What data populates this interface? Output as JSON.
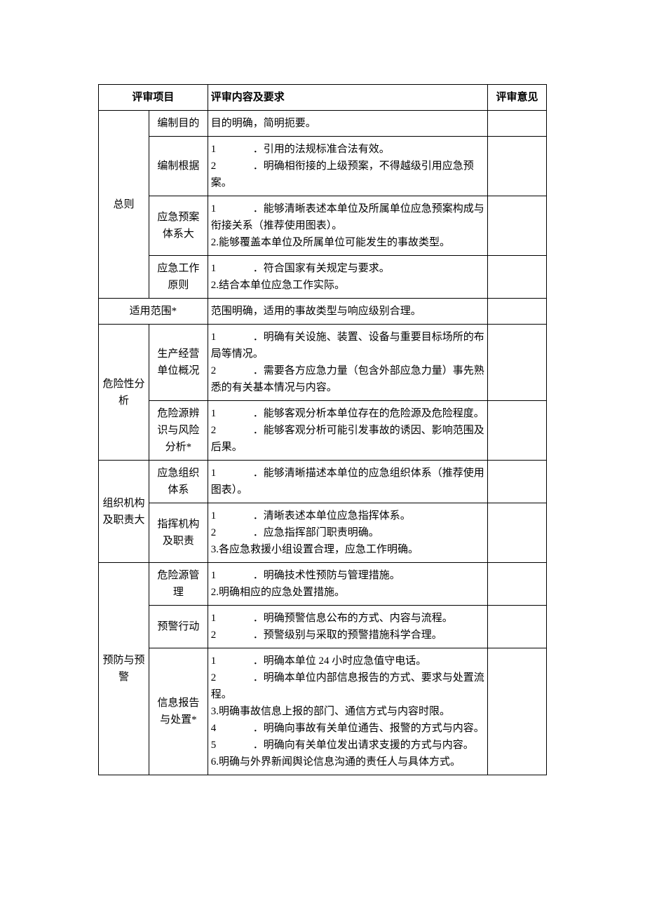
{
  "headers": {
    "col1": "评审项目",
    "col2": "评审内容及要求",
    "col3": "评审意见"
  },
  "sections": [
    {
      "category": "总则",
      "items": [
        {
          "sub": "编制目的",
          "req_lines": [
            "目的明确，简明扼要。"
          ],
          "numbered": false
        },
        {
          "sub": "编制根据",
          "req_lines": [
            "．引用的法规标准合法有效。",
            "．明确相衔接的上级预案，不得越级引用应急预案。"
          ],
          "numbered": true,
          "gap": true
        },
        {
          "sub": "应急预案体系大",
          "req_lines": [
            "．能够清晰表述本单位及所属单位应急预案构成与衔接关系（推荐使用图表）。",
            "2.能够覆盖本单位及所属单位可能发生的事故类型。"
          ],
          "numbered": "mixed"
        },
        {
          "sub": "应急工作原则",
          "req_lines": [
            "．符合国家有关规定与要求。",
            "2.结合本单位应急工作实际。"
          ],
          "numbered": "mixed1"
        }
      ]
    },
    {
      "category_full": "适用范围*",
      "req_lines": [
        "范围明确，适用的事故类型与响应级别合理。"
      ]
    },
    {
      "category": "危险性分析",
      "items": [
        {
          "sub": "生产经营单位概况",
          "req_lines": [
            "．明确有关设施、装置、设备与重要目标场所的布局等情况。",
            "．需要各方应急力量（包含外部应急力量）事先熟悉的有关基本情况与内容。"
          ],
          "numbered": true,
          "gap": true
        },
        {
          "sub": "危险源辨识与风险分析*",
          "req_lines": [
            "．能够客观分析本单位存在的危险源及危险程度。",
            "．能够客观分析可能引发事故的诱因、影响范围及后果。"
          ],
          "numbered": true,
          "gap": true
        }
      ]
    },
    {
      "category": "组织机构及职责大",
      "items": [
        {
          "sub": "应急组织体系",
          "req_lines": [
            "．能够清晰描述本单位的应急组织体系（推荐使用图表）。"
          ],
          "numbered": true,
          "gap": true,
          "single": true
        },
        {
          "sub": "指挥机构及职责",
          "req_lines": [
            "．清晰表述本单位应急指挥体系。",
            "．应急指挥部门职责明确。",
            "3.各应急救援小组设置合理，应急工作明确。"
          ],
          "numbered": "mixed2"
        }
      ]
    },
    {
      "category": "预防与预警",
      "items": [
        {
          "sub": "危险源管理",
          "req_lines": [
            "．明确技术性预防与管理措施。",
            "2.明确相应的应急处置措施。"
          ],
          "numbered": "mixed1"
        },
        {
          "sub": "预警行动",
          "req_lines": [
            "．明确预警信息公布的方式、内容与流程。",
            "．预警级别与采取的预警措施科学合理。"
          ],
          "numbered": true,
          "gap": true
        },
        {
          "sub": "信息报告与处置*",
          "req_lines": [
            "．明确本单位 24 小时应急值守电话。",
            "．明确本单位内部信息报告的方式、要求与处置流程。",
            "3.明确事故信息上报的部门、通信方式与内容时限。",
            "．明确向事故有关单位通告、报警的方式与内容。",
            "．明确向有关单位发出请求支援的方式与内容。",
            "6.明确与外界新闻舆论信息沟通的责任人与具体方式。"
          ],
          "numbered": "mixed6"
        }
      ]
    }
  ]
}
